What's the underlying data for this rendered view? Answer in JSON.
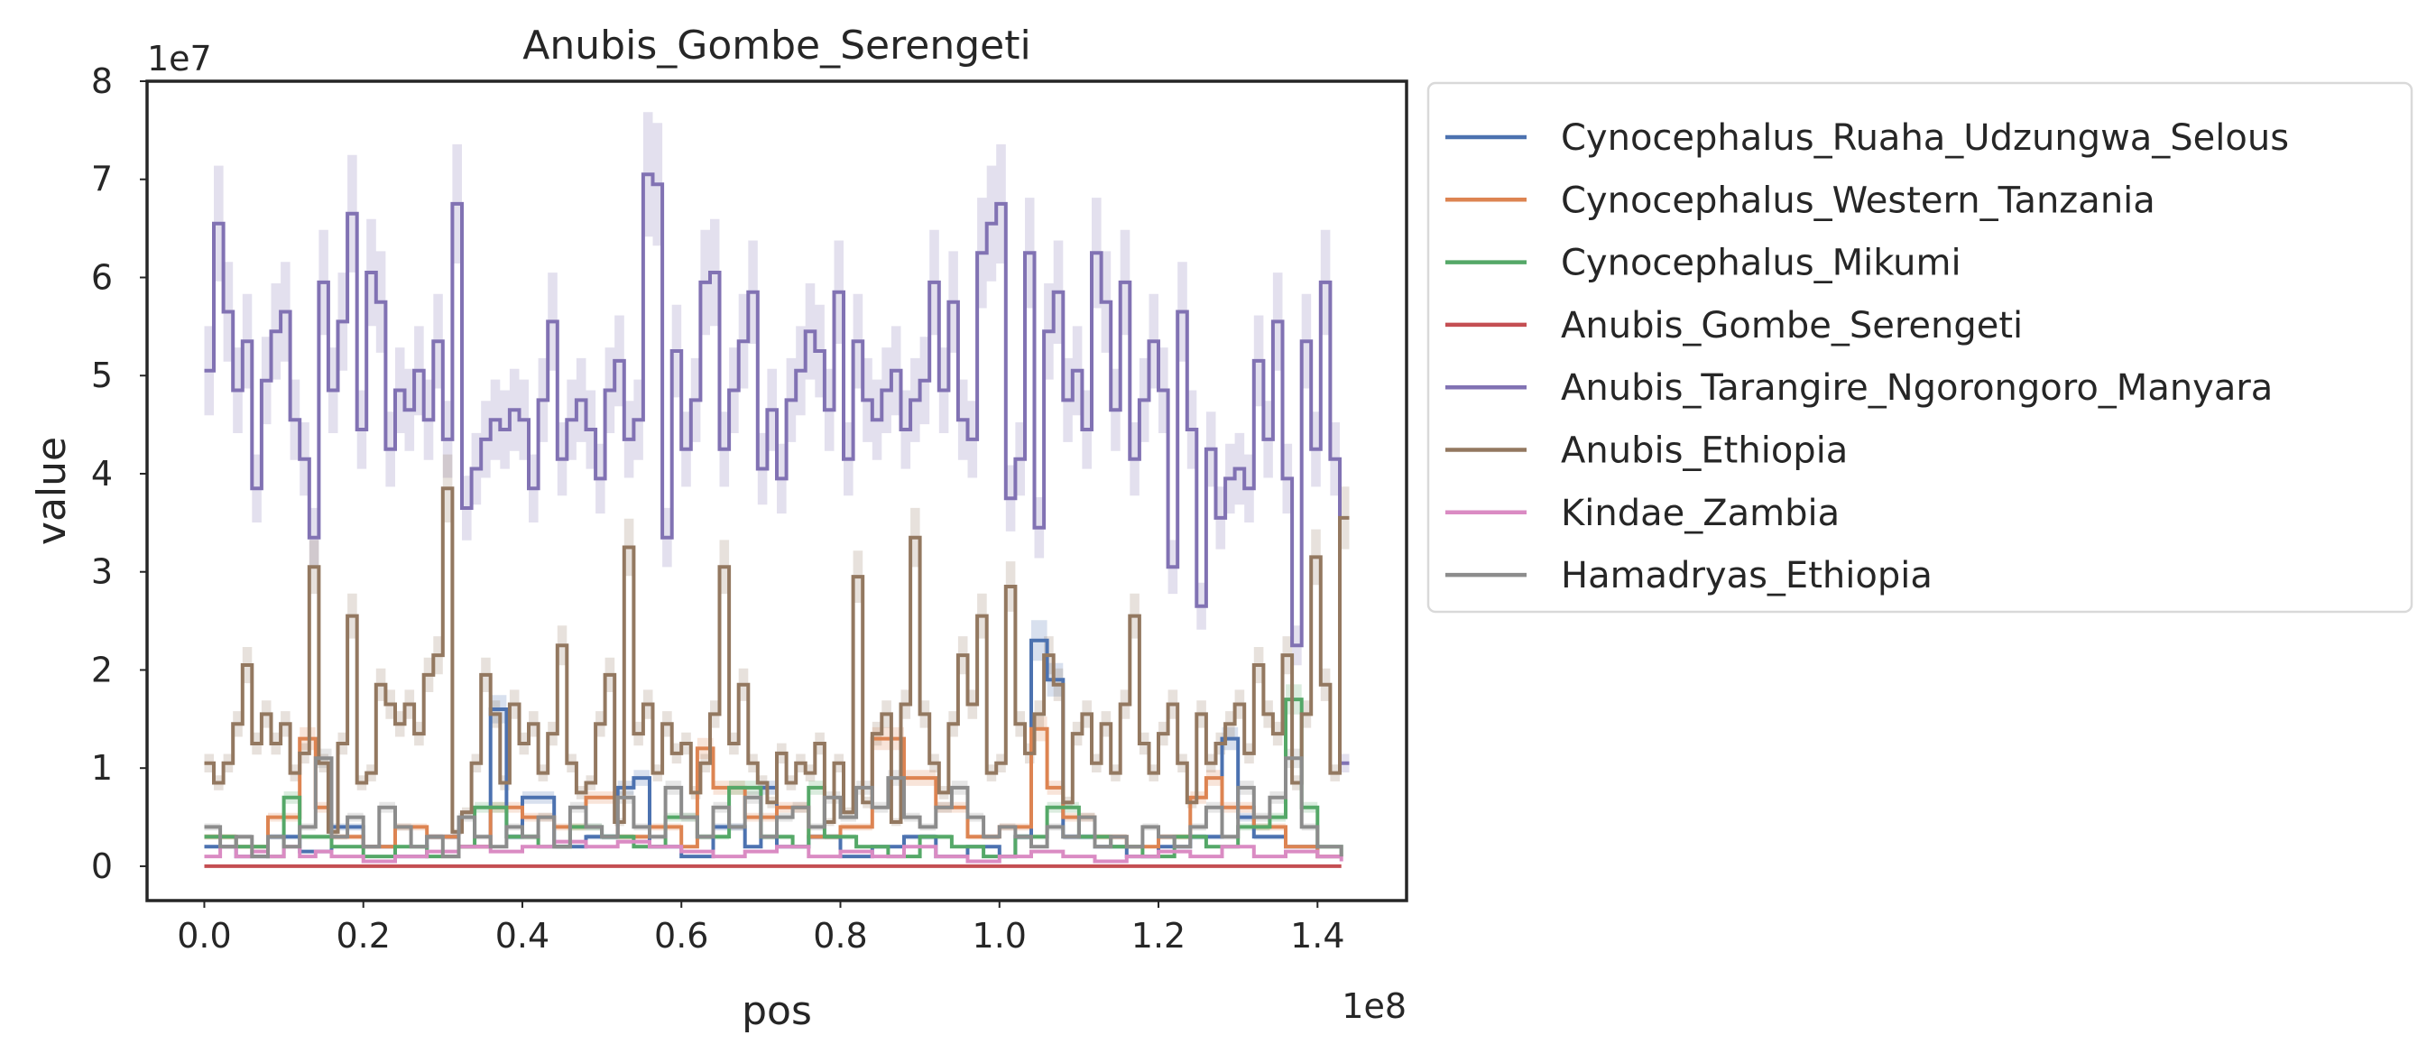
{
  "chart_data": {
    "type": "line",
    "drawstyle": "steps",
    "title": "Anubis_Gombe_Serengeti",
    "xlabel": "pos",
    "ylabel": "value",
    "x_offset_text": "1e8",
    "y_offset_text": "1e7",
    "xlim": [
      -0.072,
      1.512
    ],
    "ylim": [
      -0.35,
      8.0
    ],
    "x_scale": 100000000.0,
    "y_scale": 10000000.0,
    "x_ticks": [
      "0.0",
      "0.2",
      "0.4",
      "0.6",
      "0.8",
      "1.0",
      "1.2",
      "1.4"
    ],
    "y_ticks": [
      "0",
      "1",
      "2",
      "3",
      "4",
      "5",
      "6",
      "7",
      "8"
    ],
    "grid": false,
    "legend_position": "outside-right",
    "confidence_band": true,
    "series": [
      {
        "name": "Cynocephalus_Ruaha_Udzungwa_Selous",
        "color": "#4c72b0",
        "x": [
          0.0,
          0.04,
          0.08,
          0.12,
          0.16,
          0.2,
          0.24,
          0.28,
          0.32,
          0.36,
          0.38,
          0.4,
          0.44,
          0.48,
          0.52,
          0.54,
          0.56,
          0.6,
          0.64,
          0.68,
          0.7,
          0.72,
          0.76,
          0.8,
          0.84,
          0.88,
          0.92,
          0.96,
          1.0,
          1.02,
          1.04,
          1.06,
          1.08,
          1.12,
          1.16,
          1.2,
          1.24,
          1.28,
          1.3,
          1.32,
          1.36,
          1.4,
          1.43
        ],
        "values": [
          0.2,
          0.1,
          0.3,
          0.15,
          0.4,
          0.2,
          0.1,
          0.3,
          0.2,
          1.6,
          0.3,
          0.7,
          0.2,
          0.3,
          0.8,
          0.9,
          0.2,
          0.1,
          0.4,
          0.2,
          0.8,
          0.2,
          0.3,
          0.1,
          0.2,
          0.3,
          0.1,
          0.2,
          0.1,
          0.3,
          2.3,
          1.9,
          0.3,
          0.2,
          0.1,
          0.2,
          0.3,
          1.3,
          0.5,
          0.3,
          0.2,
          0.1,
          0.1
        ]
      },
      {
        "name": "Cynocephalus_Western_Tanzania",
        "color": "#dd8452",
        "x": [
          0.0,
          0.04,
          0.08,
          0.12,
          0.14,
          0.16,
          0.2,
          0.24,
          0.28,
          0.32,
          0.36,
          0.4,
          0.44,
          0.48,
          0.52,
          0.56,
          0.6,
          0.62,
          0.64,
          0.68,
          0.72,
          0.76,
          0.8,
          0.84,
          0.88,
          0.92,
          0.96,
          1.0,
          1.04,
          1.06,
          1.08,
          1.12,
          1.16,
          1.2,
          1.24,
          1.26,
          1.28,
          1.32,
          1.36,
          1.4,
          1.43
        ],
        "values": [
          0.3,
          0.2,
          0.5,
          1.3,
          0.6,
          0.3,
          0.2,
          0.4,
          0.3,
          0.2,
          0.6,
          0.5,
          0.4,
          0.7,
          0.3,
          0.4,
          0.2,
          1.2,
          0.8,
          0.5,
          0.6,
          0.3,
          0.4,
          1.3,
          0.9,
          0.6,
          0.3,
          0.4,
          1.4,
          0.8,
          0.5,
          0.3,
          0.2,
          0.3,
          0.7,
          0.9,
          0.6,
          0.4,
          0.2,
          0.1,
          0.1
        ]
      },
      {
        "name": "Cynocephalus_Mikumi",
        "color": "#55a868",
        "x": [
          0.0,
          0.04,
          0.08,
          0.1,
          0.12,
          0.16,
          0.2,
          0.24,
          0.28,
          0.32,
          0.34,
          0.38,
          0.42,
          0.46,
          0.5,
          0.54,
          0.58,
          0.62,
          0.66,
          0.7,
          0.74,
          0.76,
          0.78,
          0.82,
          0.86,
          0.9,
          0.94,
          0.98,
          1.02,
          1.06,
          1.1,
          1.14,
          1.18,
          1.22,
          1.26,
          1.3,
          1.34,
          1.36,
          1.38,
          1.4,
          1.43
        ],
        "values": [
          0.3,
          0.2,
          0.1,
          0.7,
          0.3,
          0.2,
          0.1,
          0.2,
          0.1,
          0.2,
          0.6,
          0.3,
          0.2,
          0.4,
          0.3,
          0.2,
          0.5,
          0.3,
          0.8,
          0.3,
          0.2,
          0.8,
          0.3,
          0.2,
          0.1,
          0.3,
          0.2,
          0.1,
          0.3,
          0.6,
          0.3,
          0.2,
          0.1,
          0.3,
          0.2,
          0.4,
          0.5,
          1.7,
          0.6,
          0.2,
          0.1
        ]
      },
      {
        "name": "Anubis_Gombe_Serengeti",
        "color": "#c44e52",
        "x": [
          0.0,
          0.2,
          0.4,
          0.6,
          0.8,
          1.0,
          1.2,
          1.43
        ],
        "values": [
          0.0,
          0.0,
          0.0,
          0.0,
          0.0,
          0.0,
          0.0,
          0.0
        ]
      },
      {
        "name": "Anubis_Tarangire_Ngorongoro_Manyara",
        "color": "#8172b3",
        "x": [
          0.0,
          0.012,
          0.024,
          0.036,
          0.048,
          0.06,
          0.072,
          0.084,
          0.096,
          0.108,
          0.12,
          0.132,
          0.144,
          0.156,
          0.168,
          0.18,
          0.192,
          0.204,
          0.216,
          0.228,
          0.24,
          0.252,
          0.264,
          0.276,
          0.288,
          0.3,
          0.312,
          0.324,
          0.336,
          0.348,
          0.36,
          0.372,
          0.384,
          0.396,
          0.408,
          0.42,
          0.432,
          0.444,
          0.456,
          0.468,
          0.48,
          0.492,
          0.504,
          0.516,
          0.528,
          0.54,
          0.552,
          0.564,
          0.576,
          0.588,
          0.6,
          0.612,
          0.624,
          0.636,
          0.648,
          0.66,
          0.672,
          0.684,
          0.696,
          0.708,
          0.72,
          0.732,
          0.744,
          0.756,
          0.768,
          0.78,
          0.792,
          0.804,
          0.816,
          0.828,
          0.84,
          0.852,
          0.864,
          0.876,
          0.888,
          0.9,
          0.912,
          0.924,
          0.936,
          0.948,
          0.96,
          0.972,
          0.984,
          0.996,
          1.008,
          1.02,
          1.032,
          1.044,
          1.056,
          1.068,
          1.08,
          1.092,
          1.104,
          1.116,
          1.128,
          1.14,
          1.152,
          1.164,
          1.176,
          1.188,
          1.2,
          1.212,
          1.224,
          1.236,
          1.248,
          1.26,
          1.272,
          1.284,
          1.296,
          1.308,
          1.32,
          1.332,
          1.344,
          1.356,
          1.368,
          1.38,
          1.392,
          1.404,
          1.416,
          1.428,
          1.44
        ],
        "values": [
          5.05,
          6.55,
          5.65,
          4.85,
          5.35,
          3.85,
          4.95,
          5.45,
          5.65,
          4.55,
          4.15,
          3.35,
          5.95,
          4.85,
          5.55,
          6.65,
          4.45,
          6.05,
          5.75,
          4.25,
          4.85,
          4.65,
          5.05,
          4.55,
          5.35,
          4.35,
          6.75,
          3.65,
          4.05,
          4.35,
          4.55,
          4.45,
          4.65,
          4.55,
          3.85,
          4.75,
          5.55,
          4.15,
          4.55,
          4.75,
          4.45,
          3.95,
          4.85,
          5.15,
          4.35,
          4.55,
          7.05,
          6.95,
          3.35,
          5.25,
          4.25,
          4.75,
          5.95,
          6.05,
          4.25,
          4.85,
          5.35,
          5.85,
          4.05,
          4.65,
          3.95,
          4.75,
          5.05,
          5.45,
          5.25,
          4.65,
          5.85,
          4.15,
          5.35,
          4.75,
          4.55,
          4.85,
          5.05,
          4.45,
          4.75,
          4.95,
          5.95,
          4.85,
          5.75,
          4.55,
          4.35,
          6.25,
          6.55,
          6.75,
          3.75,
          4.15,
          6.25,
          3.45,
          5.45,
          5.85,
          4.75,
          5.05,
          4.45,
          6.25,
          5.75,
          4.65,
          5.95,
          4.15,
          4.75,
          5.35,
          4.85,
          3.05,
          5.65,
          4.45,
          2.65,
          4.25,
          3.55,
          3.95,
          4.05,
          3.85,
          5.15,
          4.35,
          5.55,
          3.95,
          2.25,
          5.35,
          4.25,
          5.95,
          4.15,
          1.05,
          1.05
        ]
      },
      {
        "name": "Anubis_Ethiopia",
        "color": "#937860",
        "x": [
          0.0,
          0.012,
          0.024,
          0.036,
          0.048,
          0.06,
          0.072,
          0.084,
          0.096,
          0.108,
          0.12,
          0.132,
          0.144,
          0.156,
          0.168,
          0.18,
          0.192,
          0.204,
          0.216,
          0.228,
          0.24,
          0.252,
          0.264,
          0.276,
          0.288,
          0.3,
          0.312,
          0.324,
          0.336,
          0.348,
          0.36,
          0.372,
          0.384,
          0.396,
          0.408,
          0.42,
          0.432,
          0.444,
          0.456,
          0.468,
          0.48,
          0.492,
          0.504,
          0.516,
          0.528,
          0.54,
          0.552,
          0.564,
          0.576,
          0.588,
          0.6,
          0.612,
          0.624,
          0.636,
          0.648,
          0.66,
          0.672,
          0.684,
          0.696,
          0.708,
          0.72,
          0.732,
          0.744,
          0.756,
          0.768,
          0.78,
          0.792,
          0.804,
          0.816,
          0.828,
          0.84,
          0.852,
          0.864,
          0.876,
          0.888,
          0.9,
          0.912,
          0.924,
          0.936,
          0.948,
          0.96,
          0.972,
          0.984,
          0.996,
          1.008,
          1.02,
          1.032,
          1.044,
          1.056,
          1.068,
          1.08,
          1.092,
          1.104,
          1.116,
          1.128,
          1.14,
          1.152,
          1.164,
          1.176,
          1.188,
          1.2,
          1.212,
          1.224,
          1.236,
          1.248,
          1.26,
          1.272,
          1.284,
          1.296,
          1.308,
          1.32,
          1.332,
          1.344,
          1.356,
          1.368,
          1.38,
          1.392,
          1.404,
          1.416,
          1.428,
          1.44
        ],
        "values": [
          1.05,
          0.85,
          1.05,
          1.45,
          2.05,
          1.25,
          1.55,
          1.25,
          1.45,
          0.95,
          1.15,
          3.05,
          1.05,
          0.35,
          1.25,
          2.55,
          0.85,
          0.95,
          1.85,
          1.65,
          1.45,
          1.65,
          1.35,
          1.95,
          2.15,
          3.85,
          0.35,
          0.55,
          1.05,
          1.95,
          1.55,
          0.85,
          1.65,
          1.25,
          1.45,
          0.95,
          1.35,
          2.25,
          1.05,
          0.75,
          0.85,
          1.45,
          1.95,
          0.45,
          3.25,
          1.35,
          1.65,
          0.95,
          1.45,
          1.15,
          1.25,
          0.75,
          1.05,
          1.55,
          3.05,
          1.25,
          1.85,
          1.05,
          0.85,
          0.65,
          1.15,
          0.85,
          1.05,
          0.95,
          1.25,
          0.45,
          1.05,
          0.55,
          2.95,
          0.65,
          1.35,
          1.55,
          0.45,
          1.65,
          3.35,
          1.55,
          1.05,
          0.75,
          1.45,
          2.15,
          1.65,
          2.55,
          0.95,
          1.05,
          2.85,
          1.45,
          1.15,
          1.55,
          2.15,
          1.85,
          0.65,
          1.35,
          1.55,
          1.05,
          1.45,
          0.95,
          1.65,
          2.55,
          1.25,
          0.95,
          1.35,
          1.65,
          1.05,
          0.65,
          1.55,
          1.05,
          1.25,
          1.45,
          1.65,
          1.15,
          2.05,
          1.55,
          1.35,
          2.15,
          0.85,
          1.55,
          3.15,
          1.85,
          0.95,
          3.55,
          3.55
        ]
      },
      {
        "name": "Kindae_Zambia",
        "color": "#da8bc3",
        "x": [
          0.0,
          0.02,
          0.04,
          0.06,
          0.08,
          0.1,
          0.12,
          0.14,
          0.16,
          0.2,
          0.24,
          0.28,
          0.32,
          0.36,
          0.4,
          0.44,
          0.48,
          0.52,
          0.56,
          0.6,
          0.64,
          0.68,
          0.72,
          0.76,
          0.8,
          0.84,
          0.88,
          0.92,
          0.96,
          1.0,
          1.04,
          1.08,
          1.12,
          1.16,
          1.2,
          1.24,
          1.28,
          1.32,
          1.36,
          1.4,
          1.43
        ],
        "values": [
          0.1,
          0.2,
          0.1,
          0.15,
          0.1,
          0.2,
          0.1,
          0.15,
          0.1,
          0.05,
          0.1,
          0.15,
          0.2,
          0.15,
          0.2,
          0.25,
          0.2,
          0.25,
          0.2,
          0.15,
          0.1,
          0.15,
          0.2,
          0.1,
          0.15,
          0.1,
          0.2,
          0.1,
          0.05,
          0.1,
          0.15,
          0.1,
          0.05,
          0.1,
          0.15,
          0.1,
          0.2,
          0.1,
          0.15,
          0.1,
          0.05
        ]
      },
      {
        "name": "Hamadryas_Ethiopia",
        "color": "#8c8c8c",
        "x": [
          0.0,
          0.02,
          0.04,
          0.06,
          0.08,
          0.1,
          0.12,
          0.14,
          0.16,
          0.18,
          0.2,
          0.22,
          0.24,
          0.26,
          0.28,
          0.3,
          0.32,
          0.34,
          0.36,
          0.38,
          0.4,
          0.42,
          0.44,
          0.46,
          0.48,
          0.5,
          0.52,
          0.54,
          0.56,
          0.58,
          0.6,
          0.62,
          0.64,
          0.66,
          0.68,
          0.7,
          0.72,
          0.74,
          0.76,
          0.78,
          0.8,
          0.82,
          0.84,
          0.86,
          0.88,
          0.9,
          0.92,
          0.94,
          0.96,
          0.98,
          1.0,
          1.02,
          1.04,
          1.06,
          1.08,
          1.1,
          1.12,
          1.14,
          1.16,
          1.18,
          1.2,
          1.22,
          1.24,
          1.26,
          1.28,
          1.3,
          1.32,
          1.34,
          1.36,
          1.38,
          1.4,
          1.43
        ],
        "values": [
          0.4,
          0.2,
          0.3,
          0.1,
          0.3,
          0.2,
          0.4,
          1.1,
          0.3,
          0.5,
          0.2,
          0.6,
          0.4,
          0.2,
          0.3,
          0.1,
          0.5,
          0.3,
          0.2,
          0.4,
          0.3,
          0.5,
          0.2,
          0.6,
          0.4,
          0.3,
          0.7,
          0.4,
          0.3,
          0.8,
          0.5,
          0.3,
          0.6,
          0.4,
          0.7,
          0.3,
          0.5,
          0.6,
          0.4,
          0.7,
          0.5,
          0.8,
          0.6,
          0.9,
          0.5,
          0.4,
          0.6,
          0.8,
          0.5,
          0.3,
          0.4,
          0.3,
          0.2,
          0.4,
          0.3,
          0.5,
          0.2,
          0.3,
          0.2,
          0.4,
          0.3,
          0.2,
          0.4,
          0.6,
          0.3,
          0.8,
          0.5,
          0.7,
          1.1,
          0.4,
          0.2,
          0.1
        ]
      }
    ]
  }
}
